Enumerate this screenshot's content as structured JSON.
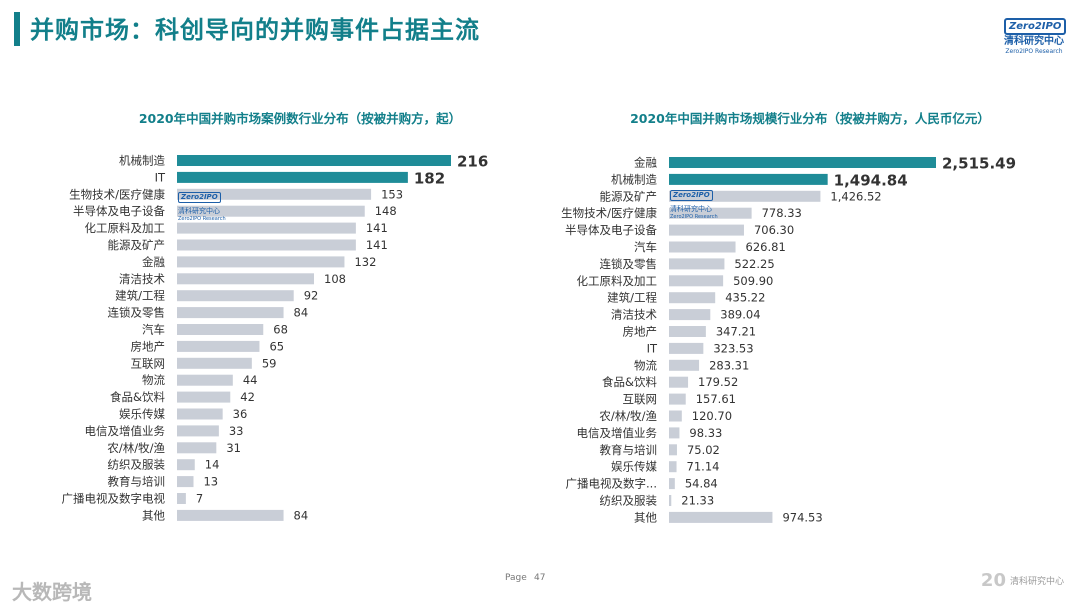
{
  "header": {
    "title": "并购市场：科创导向的并购事件占据主流"
  },
  "logo": {
    "mark": "Zero2IPO",
    "cn": "清科研究中心",
    "en": "Zero2IPO Research"
  },
  "footer": {
    "page_label": "Page",
    "page_number": "47",
    "brand_left": "大数跨境",
    "brand_right_mark": "20",
    "brand_right_text": "清科研究中心"
  },
  "colors": {
    "accent": "#127f8a",
    "bar": "#c9ced7",
    "highlight": "#1f8c98"
  },
  "chart_data": [
    {
      "type": "bar",
      "orientation": "horizontal",
      "title": "2020年中国并购市场案例数行业分布（按被并购方，起）",
      "categories": [
        "机械制造",
        "IT",
        "生物技术/医疗健康",
        "半导体及电子设备",
        "化工原料及加工",
        "能源及矿产",
        "金融",
        "清洁技术",
        "建筑/工程",
        "连锁及零售",
        "汽车",
        "房地产",
        "互联网",
        "物流",
        "食品&饮料",
        "娱乐传媒",
        "电信及增值业务",
        "农/林/牧/渔",
        "纺织及服装",
        "教育与培训",
        "广播电视及数字电视",
        "其他"
      ],
      "values": [
        216,
        182,
        153,
        148,
        141,
        141,
        132,
        108,
        92,
        84,
        68,
        65,
        59,
        44,
        42,
        36,
        33,
        31,
        14,
        13,
        7,
        84
      ],
      "labels": [
        "216",
        "182",
        "153",
        "148",
        "141",
        "141",
        "132",
        "108",
        "92",
        "84",
        "68",
        "65",
        "59",
        "44",
        "42",
        "36",
        "33",
        "31",
        "14",
        "13",
        "7",
        "84"
      ],
      "highlighted": [
        0,
        1
      ],
      "xlim": [
        0,
        216
      ]
    },
    {
      "type": "bar",
      "orientation": "horizontal",
      "title": "2020年中国并购市场规模行业分布（按被并购方，人民币亿元）",
      "categories": [
        "金融",
        "机械制造",
        "能源及矿产",
        "生物技术/医疗健康",
        "半导体及电子设备",
        "汽车",
        "连锁及零售",
        "化工原料及加工",
        "建筑/工程",
        "清洁技术",
        "房地产",
        "IT",
        "物流",
        "食品&饮料",
        "互联网",
        "农/林/牧/渔",
        "电信及增值业务",
        "教育与培训",
        "娱乐传媒",
        "广播电视及数字...",
        "纺织及服装",
        "其他"
      ],
      "values": [
        2515.49,
        1494.84,
        1426.52,
        778.33,
        706.3,
        626.81,
        522.25,
        509.9,
        435.22,
        389.04,
        347.21,
        323.53,
        283.31,
        179.52,
        157.61,
        120.7,
        98.33,
        75.02,
        71.14,
        54.84,
        21.33,
        974.53
      ],
      "labels": [
        "2,515.49",
        "1,494.84",
        "1,426.52",
        "778.33",
        "706.30",
        "626.81",
        "522.25",
        "509.90",
        "435.22",
        "389.04",
        "347.21",
        "323.53",
        "283.31",
        "179.52",
        "157.61",
        "120.70",
        "98.33",
        "75.02",
        "71.14",
        "54.84",
        "21.33",
        "974.53"
      ],
      "highlighted": [
        0,
        1
      ],
      "xlim": [
        0,
        2515.49
      ]
    }
  ]
}
